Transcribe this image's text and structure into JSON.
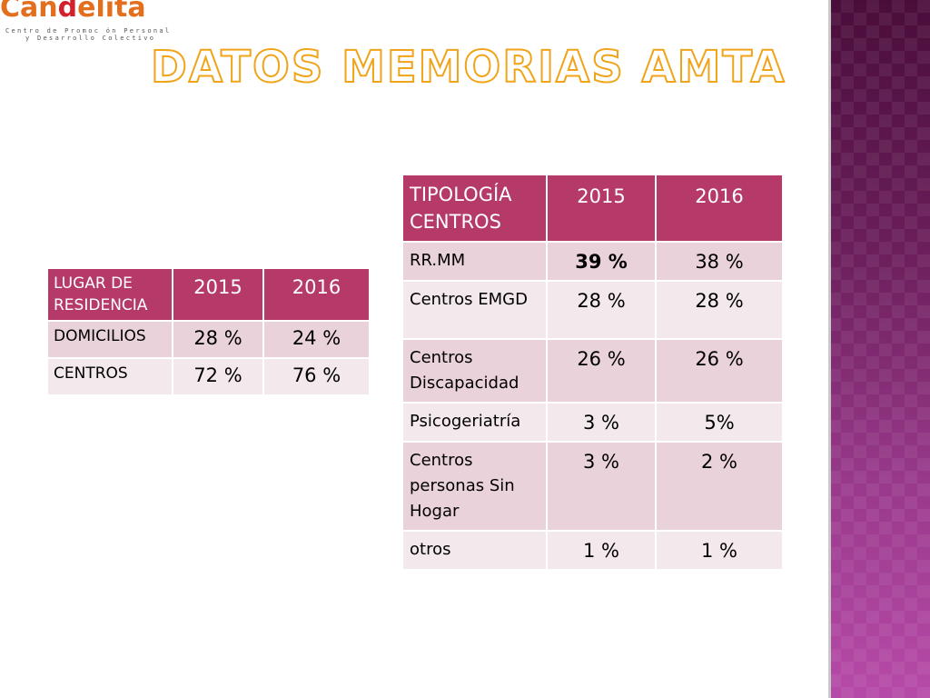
{
  "logo": {
    "word_part1": "Can",
    "word_part2": "d",
    "word_part3": "elita",
    "tagline_1": "Centro de Promoc ón Personal",
    "tagline_2": "y Desarrollo Colectivo"
  },
  "title": "DATOS MEMORIAS AMTA",
  "table_residencia": {
    "headers": [
      "LUGAR DE RESIDENCIA",
      "2015",
      "2016"
    ],
    "rows": [
      [
        "DOMICILIOS",
        "28 %",
        "24 %"
      ],
      [
        "CENTROS",
        "72 %",
        "76 %"
      ]
    ]
  },
  "table_tipologia": {
    "headers": [
      "TIPOLOGÍA CENTROS",
      "2015",
      "2016"
    ],
    "rows": [
      [
        "RR.MM",
        "39 %",
        "38 %"
      ],
      [
        "Centros EMGD",
        "28 %",
        "28 %"
      ],
      [
        "Centros Discapacidad",
        "26 %",
        "26 %"
      ],
      [
        "Psicogeriatría",
        "3 %",
        "5%"
      ],
      [
        "Centros personas Sin Hogar",
        "3 %",
        "2 %"
      ],
      [
        "otros",
        "1 %",
        "1 %"
      ]
    ]
  },
  "colors": {
    "header_bg": "#b53a6a",
    "row_odd_bg": "#ead2da",
    "row_even_bg": "#f3e8ec",
    "title_outline": "#f0a41a",
    "side_panel": "#6a1e5a"
  }
}
